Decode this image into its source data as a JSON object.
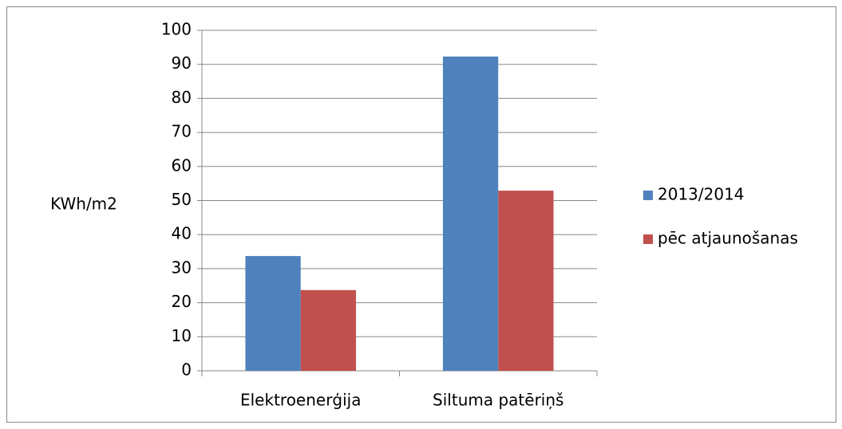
{
  "chart_data": {
    "type": "bar",
    "y_label": "KWh/m2",
    "categories": [
      "Elektroenerģija",
      "Siltuma patēriņš"
    ],
    "series": [
      {
        "name": "2013/2014",
        "color": "#4f81bd",
        "values": [
          33.7,
          92.3
        ]
      },
      {
        "name": "pēc atjaunošanas",
        "color": "#c0504d",
        "values": [
          23.7,
          52.9
        ]
      }
    ],
    "ylim": [
      0,
      100
    ],
    "yticks": [
      0,
      10,
      20,
      30,
      40,
      50,
      60,
      70,
      80,
      90,
      100
    ],
    "grid": true,
    "legend": "right"
  }
}
